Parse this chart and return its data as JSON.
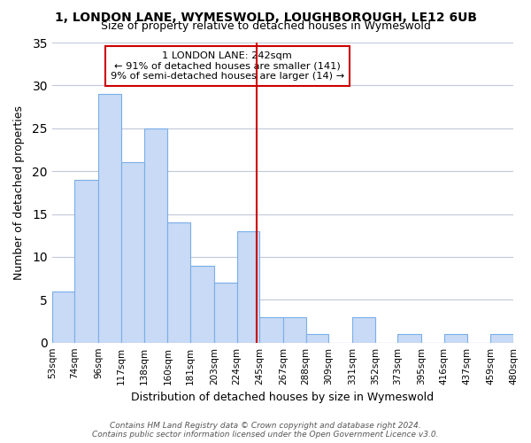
{
  "title1": "1, LONDON LANE, WYMESWOLD, LOUGHBOROUGH, LE12 6UB",
  "title2": "Size of property relative to detached houses in Wymeswold",
  "xlabel": "Distribution of detached houses by size in Wymeswold",
  "ylabel": "Number of detached properties",
  "bar_heights": [
    6,
    19,
    29,
    21,
    25,
    14,
    9,
    7,
    13,
    3,
    3,
    1,
    0,
    3,
    0,
    1,
    0,
    1,
    0,
    1
  ],
  "bin_edges": [
    53,
    74,
    96,
    117,
    138,
    160,
    181,
    203,
    224,
    245,
    267,
    288,
    309,
    331,
    352,
    373,
    395,
    416,
    437,
    459,
    480
  ],
  "bar_color": "#c8daf5",
  "bar_edgecolor": "#7aaee8",
  "vline_x": 242,
  "vline_color": "#cc0000",
  "annotation_text": "1 LONDON LANE: 242sqm\n← 91% of detached houses are smaller (141)\n9% of semi-detached houses are larger (14) →",
  "annotation_box_edgecolor": "#cc0000",
  "annotation_box_facecolor": "#ffffff",
  "xlim_left": 53,
  "xlim_right": 480,
  "ylim_top": 35,
  "ylim_bottom": 0,
  "tick_labels": [
    "53sqm",
    "74sqm",
    "96sqm",
    "117sqm",
    "138sqm",
    "160sqm",
    "181sqm",
    "203sqm",
    "224sqm",
    "245sqm",
    "267sqm",
    "288sqm",
    "309sqm",
    "331sqm",
    "352sqm",
    "373sqm",
    "395sqm",
    "416sqm",
    "437sqm",
    "459sqm",
    "480sqm"
  ],
  "tick_positions": [
    53,
    74,
    96,
    117,
    138,
    160,
    181,
    203,
    224,
    245,
    267,
    288,
    309,
    331,
    352,
    373,
    395,
    416,
    437,
    459,
    480
  ],
  "yticks": [
    0,
    5,
    10,
    15,
    20,
    25,
    30,
    35
  ],
  "footer_text": "Contains HM Land Registry data © Crown copyright and database right 2024.\nContains public sector information licensed under the Open Government Licence v3.0.",
  "background_color": "#ffffff",
  "grid_color": "#c0c8d8"
}
